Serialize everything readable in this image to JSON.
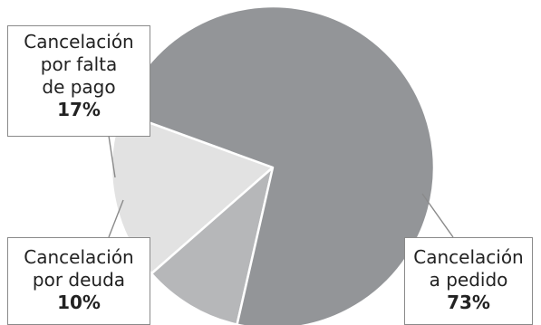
{
  "chart_data": {
    "type": "pie",
    "title": "",
    "slices": [
      {
        "label_lines": [
          "Cancelación",
          "por falta",
          "de pago"
        ],
        "value": 17,
        "value_label": "17%",
        "color": "#e2e2e2"
      },
      {
        "label_lines": [
          "Cancelación",
          "por deuda"
        ],
        "value": 10,
        "value_label": "10%",
        "color": "#b6b7b9"
      },
      {
        "label_lines": [
          "Cancelación",
          "a pedido"
        ],
        "value": 73,
        "value_label": "73%",
        "color": "#939598"
      }
    ],
    "slice_border_color": "#ffffff",
    "callout_line_color": "#8a8a8a"
  }
}
